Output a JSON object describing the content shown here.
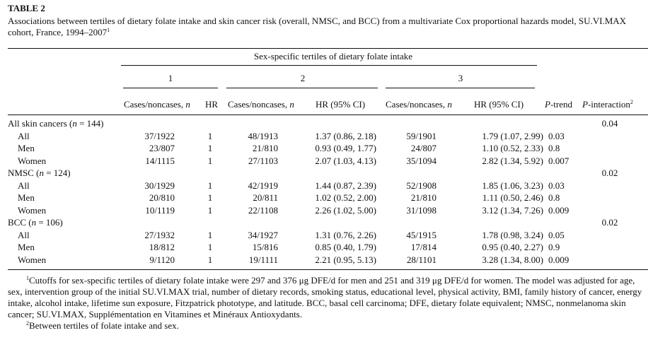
{
  "table_label": "TABLE 2",
  "caption": {
    "text": "Associations between tertiles of dietary folate intake and skin cancer risk (overall, NMSC, and BCC) from a multivariate Cox proportional hazards model, SU.VI.MAX cohort, France, 1994–2007",
    "sup": "1"
  },
  "spanner": "Sex-specific tertiles of dietary folate intake",
  "tertiles": [
    "1",
    "2",
    "3"
  ],
  "headers": {
    "cases": "Cases/noncases,",
    "n": "n",
    "hr": "HR",
    "hr_ci": "HR (95% CI)",
    "ptrend_p": "P",
    "ptrend_rest": "-trend",
    "pint_p": "P",
    "pint_rest": "-interaction",
    "pint_sup": "2"
  },
  "groups": [
    {
      "label_prefix": "All skin cancers (",
      "label_n": "n",
      "label_suffix": " = 144)",
      "p_interaction": "0.04",
      "rows": [
        {
          "label": "All",
          "t1_cases": "37/1922",
          "t1_hr": "1",
          "t2_cases": "48/1913",
          "t2_hr": "1.37 (0.86, 2.18)",
          "t3_cases": "59/1901",
          "t3_hr": "1.79 (1.07, 2.99)",
          "p_trend": "0.03"
        },
        {
          "label": "Men",
          "t1_cases": "23/807",
          "t1_hr": "1",
          "t2_cases": "21/810",
          "t2_hr": "0.93 (0.49, 1.77)",
          "t3_cases": "24/807",
          "t3_hr": "1.10 (0.52, 2.33)",
          "p_trend": "0.8"
        },
        {
          "label": "Women",
          "t1_cases": "14/1115",
          "t1_hr": "1",
          "t2_cases": "27/1103",
          "t2_hr": "2.07 (1.03, 4.13)",
          "t3_cases": "35/1094",
          "t3_hr": "2.82 (1.34, 5.92)",
          "p_trend": "0.007"
        }
      ]
    },
    {
      "label_prefix": "NMSC (",
      "label_n": "n",
      "label_suffix": " = 124)",
      "p_interaction": "0.02",
      "rows": [
        {
          "label": "All",
          "t1_cases": "30/1929",
          "t1_hr": "1",
          "t2_cases": "42/1919",
          "t2_hr": "1.44 (0.87, 2.39)",
          "t3_cases": "52/1908",
          "t3_hr": "1.85 (1.06, 3.23)",
          "p_trend": "0.03"
        },
        {
          "label": "Men",
          "t1_cases": "20/810",
          "t1_hr": "1",
          "t2_cases": "20/811",
          "t2_hr": "1.02 (0.52, 2.00)",
          "t3_cases": "21/810",
          "t3_hr": "1.11 (0.50, 2.46)",
          "p_trend": "0.8"
        },
        {
          "label": "Women",
          "t1_cases": "10/1119",
          "t1_hr": "1",
          "t2_cases": "22/1108",
          "t2_hr": "2.26 (1.02, 5.00)",
          "t3_cases": "31/1098",
          "t3_hr": "3.12 (1.34, 7.26)",
          "p_trend": "0.009"
        }
      ]
    },
    {
      "label_prefix": "BCC (",
      "label_n": "n",
      "label_suffix": " = 106)",
      "p_interaction": "0.02",
      "rows": [
        {
          "label": "All",
          "t1_cases": "27/1932",
          "t1_hr": "1",
          "t2_cases": "34/1927",
          "t2_hr": "1.31 (0.76, 2.26)",
          "t3_cases": "45/1915",
          "t3_hr": "1.78 (0.98, 3.24)",
          "p_trend": "0.05"
        },
        {
          "label": "Men",
          "t1_cases": "18/812",
          "t1_hr": "1",
          "t2_cases": "15/816",
          "t2_hr": "0.85 (0.40, 1.79)",
          "t3_cases": "17/814",
          "t3_hr": "0.95 (0.40, 2.27)",
          "p_trend": "0.9"
        },
        {
          "label": "Women",
          "t1_cases": "9/1120",
          "t1_hr": "1",
          "t2_cases": "19/1111",
          "t2_hr": "2.21 (0.95, 5.13)",
          "t3_cases": "28/1101",
          "t3_hr": "3.28 (1.34, 8.00)",
          "p_trend": "0.009"
        }
      ]
    }
  ],
  "footnotes": [
    {
      "sup": "1",
      "text": "Cutoffs for sex-specific tertiles of dietary folate intake were 297 and 376 μg DFE/d for men and 251 and 319 μg DFE/d for women. The model was adjusted for age, sex, intervention group of the initial SU.VI.MAX trial, number of dietary records, smoking status, educational level, physical activity, BMI, family history of cancer, energy intake, alcohol intake, lifetime sun exposure, Fitzpatrick phototype, and latitude. BCC, basal cell carcinoma; DFE, dietary folate equivalent; NMSC, nonmelanoma skin cancer; SU.VI.MAX, Supplémentation en Vitamines et Minéraux Antioxydants."
    },
    {
      "sup": "2",
      "text": "Between tertiles of folate intake and sex."
    }
  ]
}
